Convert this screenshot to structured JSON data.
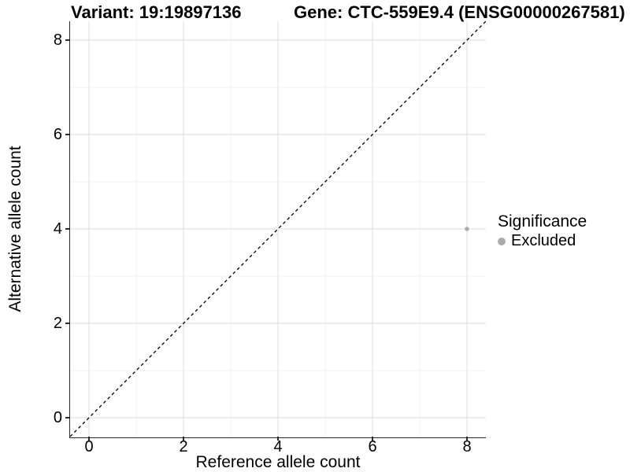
{
  "chart_data": {
    "type": "scatter",
    "titles": {
      "left": "Variant: 19:19897136",
      "right": "Gene: CTC-559E9.4 (ENSG00000267581)"
    },
    "xlabel": "Reference allele count",
    "ylabel": "Alternative allele count",
    "xlim": [
      -0.4,
      8.4
    ],
    "ylim": [
      -0.4,
      8.4
    ],
    "xticks": [
      0,
      2,
      4,
      6,
      8
    ],
    "yticks": [
      0,
      2,
      4,
      6,
      8
    ],
    "minor_gridlines_x": [
      1,
      3,
      5,
      7
    ],
    "minor_gridlines_y": [
      1,
      3,
      5,
      7
    ],
    "grid": "major and minor gridlines on white panel",
    "identity_line": {
      "equation": "y = x",
      "style": "dashed",
      "color": "#000000"
    },
    "series": [
      {
        "name": "Excluded",
        "color": "#ABABAB",
        "points": [
          {
            "x": 8,
            "y": 4
          }
        ]
      }
    ],
    "legend": {
      "title": "Significance",
      "position": "right",
      "entries": [
        {
          "label": "Excluded",
          "color": "#ABABAB"
        }
      ]
    },
    "colors": {
      "grid_major": "#E4E4E4",
      "grid_minor": "#F1F1F1",
      "axis_line": "#2B2B2B",
      "point": "#ABABAB",
      "text": "#000000"
    }
  }
}
